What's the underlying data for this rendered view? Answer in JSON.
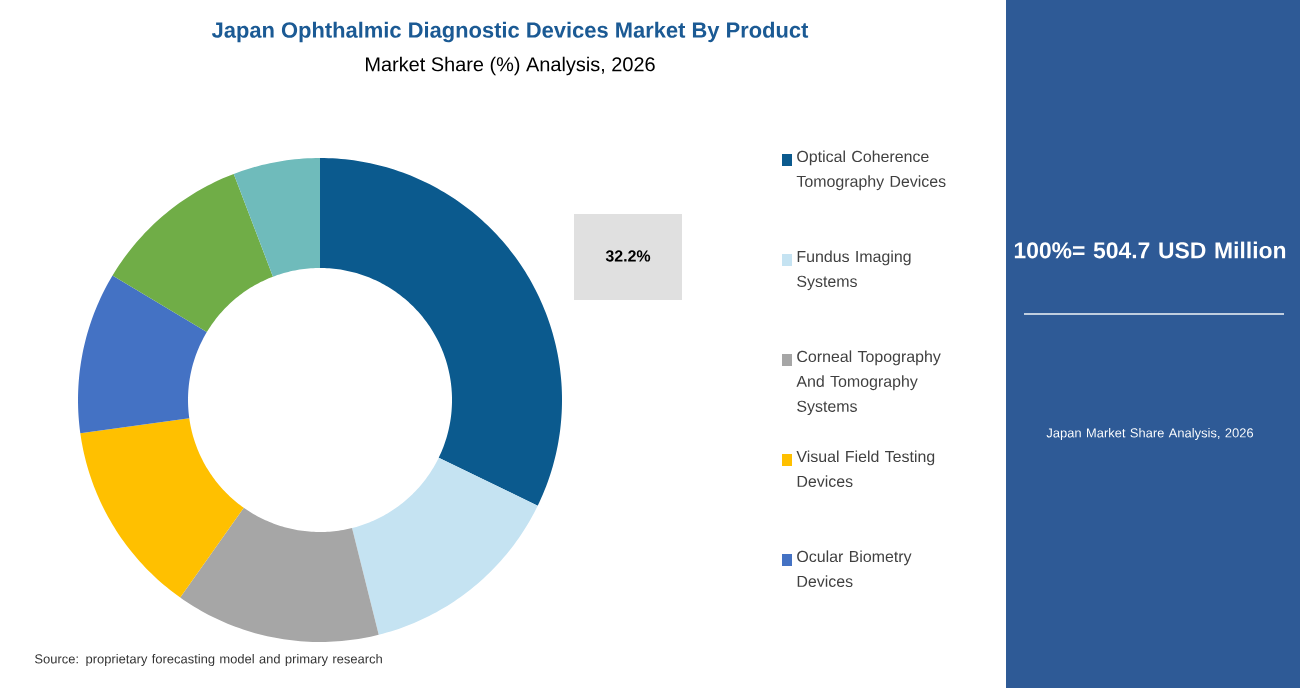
{
  "chart_data": {
    "type": "donut",
    "title": "Japan Ophthalmic Diagnostic Devices Market By Product",
    "subtitle": "Market Share (%) Analysis, 2026",
    "categories": [
      "Optical Coherence Tomography Devices",
      "Fundus Imaging Systems",
      "Corneal Topography And Tomography Systems",
      "Visual Field Testing Devices",
      "Ocular Biometry Devices",
      null,
      null
    ],
    "values": [
      32.2,
      13.9,
      13.7,
      13.0,
      10.8,
      10.6,
      5.8
    ],
    "colors": [
      "#0b5a8e",
      "#c5e3f2",
      "#a6a6a6",
      "#ffc000",
      "#4472c4",
      "#70ad47",
      "#6fbbbb"
    ],
    "value_labels": [
      "32.2%",
      null,
      null,
      null,
      null,
      null,
      null
    ],
    "legend": "right",
    "annotations": [
      "100%= 504.7 USD Million",
      "Japan Market Share Analysis, 2026",
      "Source: proprietary forecasting model and primary research"
    ]
  }
}
